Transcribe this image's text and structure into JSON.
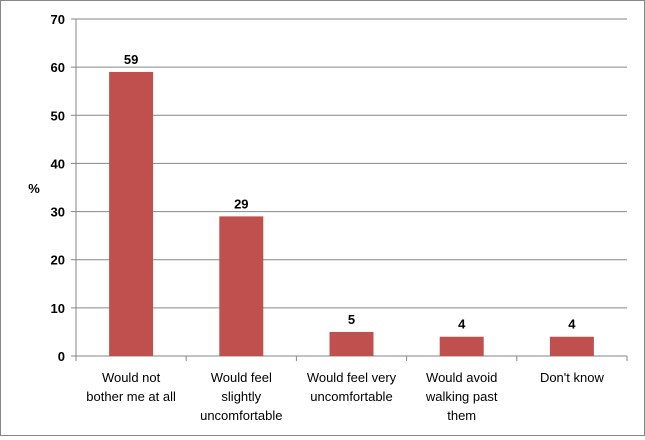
{
  "chart_data": {
    "type": "bar",
    "title": "",
    "xlabel": "",
    "ylabel": "%",
    "ylim": [
      0,
      70
    ],
    "yticks": [
      0,
      10,
      20,
      30,
      40,
      50,
      60,
      70
    ],
    "grid": true,
    "legend": "none",
    "bar_color": "#c0504d",
    "categories": [
      [
        "Would not",
        "bother me at all"
      ],
      [
        "Would feel",
        "slightly",
        "uncomfortable"
      ],
      [
        "Would feel very",
        "uncomfortable"
      ],
      [
        "Would avoid",
        "walking past",
        "them"
      ],
      [
        "Don't know"
      ]
    ],
    "values": [
      59,
      29,
      5,
      4,
      4
    ]
  }
}
